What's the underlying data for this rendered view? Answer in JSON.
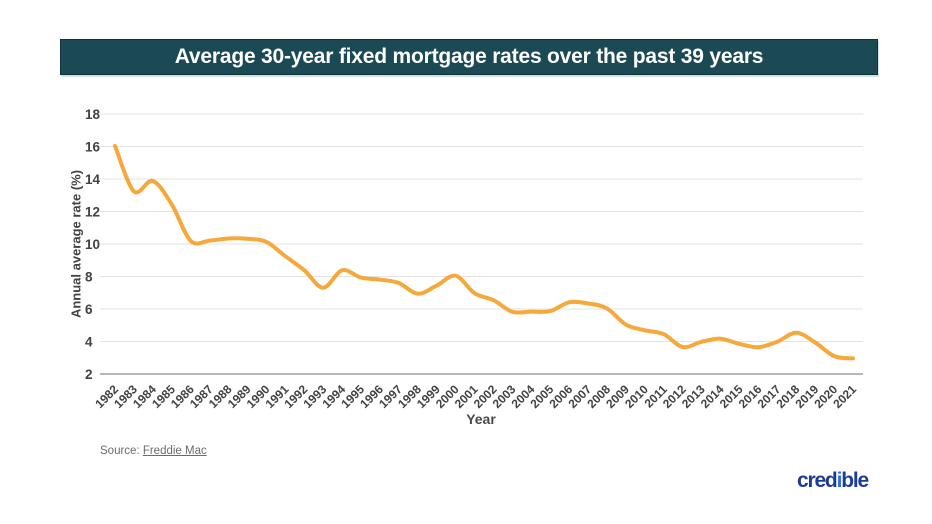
{
  "header": {
    "title": "Average 30-year fixed mortgage rates over the past 39 years",
    "background_color": "#1C4A54",
    "text_color": "#FFFFFF"
  },
  "chart_data": {
    "type": "line",
    "title": "Average 30-year fixed mortgage rates over the past 39 years",
    "xlabel": "Year",
    "ylabel": "Annual average rate (%)",
    "x": [
      1982,
      1983,
      1984,
      1985,
      1986,
      1987,
      1988,
      1989,
      1990,
      1991,
      1992,
      1993,
      1994,
      1995,
      1996,
      1997,
      1998,
      1999,
      2000,
      2001,
      2002,
      2003,
      2004,
      2005,
      2006,
      2007,
      2008,
      2009,
      2010,
      2011,
      2012,
      2013,
      2014,
      2015,
      2016,
      2017,
      2018,
      2019,
      2020,
      2021
    ],
    "values": [
      16.04,
      13.24,
      13.88,
      12.43,
      10.19,
      10.21,
      10.34,
      10.32,
      10.13,
      9.25,
      8.39,
      7.31,
      8.38,
      7.93,
      7.81,
      7.6,
      6.94,
      7.44,
      8.05,
      6.97,
      6.54,
      5.83,
      5.84,
      5.87,
      6.41,
      6.34,
      6.03,
      5.04,
      4.69,
      4.45,
      3.66,
      3.98,
      4.17,
      3.85,
      3.65,
      3.99,
      4.54,
      3.94,
      3.1,
      2.96
    ],
    "ylim": [
      2,
      18
    ],
    "yticks": [
      2,
      4,
      6,
      8,
      10,
      12,
      14,
      16,
      18
    ],
    "grid": true,
    "legend": "none",
    "line_color": "#F5A83C",
    "grid_color": "#E3E3E3",
    "axis_color": "#B8B8B8",
    "tick_label_color": "#424242"
  },
  "source": {
    "prefix": "Source: ",
    "link_text": "Freddie Mac"
  },
  "brand": {
    "text_parts": [
      "cred",
      "i",
      "ble"
    ],
    "color_main": "#1D3C96",
    "color_accent": "#2F6FE0"
  }
}
